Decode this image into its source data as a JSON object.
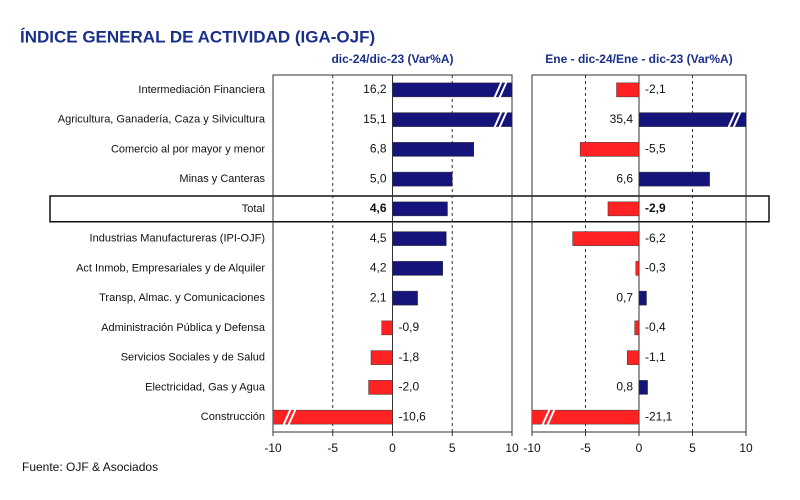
{
  "title": "ÍNDICE GENERAL DE ACTIVIDAD (IGA-OJF)",
  "source": "Fuente: OJF & Asociados",
  "chart_data": [
    {
      "type": "bar",
      "orientation": "horizontal",
      "subtitle": "dic-24/dic-23  (Var%A)",
      "categories": [
        "Intermediación Financiera",
        "Agricultura, Ganadería, Caza y Silvicultura",
        "Comercio al por mayor y menor",
        "Minas y Canteras",
        "Total",
        "Industrias Manufactureras (IPI-OJF)",
        "Act Inmob, Empresariales y de Alquiler",
        "Transp, Almac. y Comunicaciones",
        "Administración Pública y Defensa",
        "Servicios Sociales y de Salud",
        "Electricidad, Gas y Agua",
        "Construcción"
      ],
      "values": [
        16.2,
        15.1,
        6.8,
        5.0,
        4.6,
        4.5,
        4.2,
        2.1,
        -0.9,
        -1.8,
        -2.0,
        -10.6
      ],
      "value_labels": [
        "16,2",
        "15,1",
        "6,8",
        "5,0",
        "4,6",
        "4,5",
        "4,2",
        "2,1",
        "-0,9",
        "-1,8",
        "-2,0",
        "-10,6"
      ],
      "color_positive": "#14147a",
      "color_negative": "#ff2222",
      "xlim": [
        -10,
        10
      ],
      "xticks": [
        -10,
        -5,
        0,
        5,
        10
      ],
      "grid": true
    },
    {
      "type": "bar",
      "orientation": "horizontal",
      "subtitle": "Ene - dic-24/Ene - dic-23  (Var%A)",
      "values": [
        -2.1,
        35.4,
        -5.5,
        6.6,
        -2.9,
        -6.2,
        -0.3,
        0.7,
        -0.4,
        -1.1,
        0.8,
        -21.1
      ],
      "value_labels": [
        "-2,1",
        "35,4",
        "-5,5",
        "6,6",
        "-2,9",
        "-6,2",
        "-0,3",
        "0,7",
        "-0,4",
        "-1,1",
        "0,8",
        "-21,1"
      ],
      "color_positive": "#14147a",
      "color_negative": "#ff2222",
      "xlim": [
        -10,
        10
      ],
      "xticks": [
        -10,
        -5,
        0,
        5,
        10
      ],
      "grid": true
    }
  ]
}
